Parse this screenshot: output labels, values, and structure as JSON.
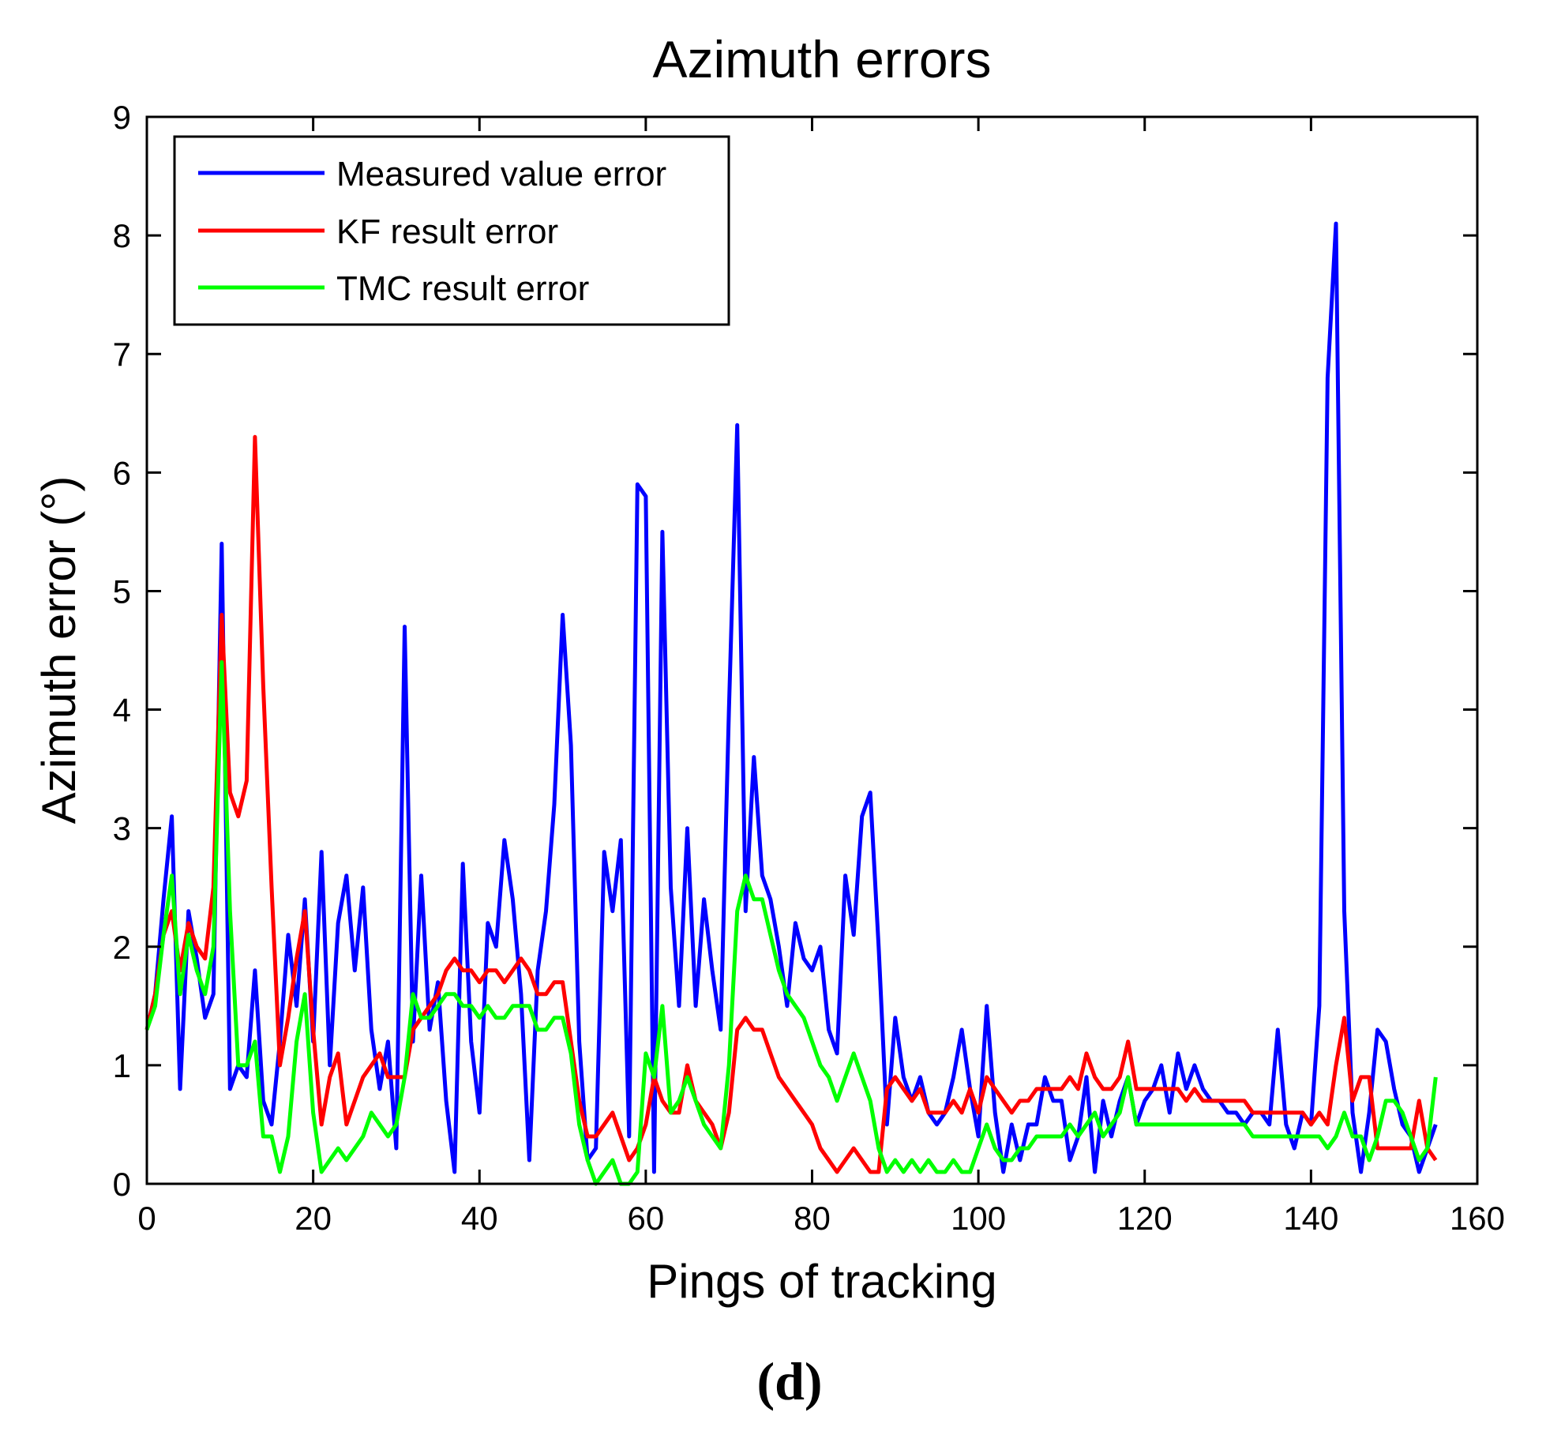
{
  "chart_data": {
    "type": "line",
    "title": "Azimuth errors",
    "xlabel": "Pings of tracking",
    "ylabel": "Azimuth error (°)",
    "panel_label": "(d)",
    "xlim": [
      0,
      160
    ],
    "ylim": [
      0,
      9
    ],
    "xticks": [
      0,
      20,
      40,
      60,
      80,
      100,
      120,
      140,
      160
    ],
    "yticks": [
      0,
      1,
      2,
      3,
      4,
      5,
      6,
      7,
      8,
      9
    ],
    "xtick_labels": [
      "0",
      "20",
      "40",
      "60",
      "80",
      "100",
      "120",
      "140",
      "160"
    ],
    "ytick_labels": [
      "0",
      "1",
      "2",
      "3",
      "4",
      "5",
      "6",
      "7",
      "8",
      "9"
    ],
    "grid": false,
    "legend_position": "top-left",
    "series": [
      {
        "name": "Measured value error",
        "color": "#0000ff",
        "x": [
          0,
          1,
          2,
          3,
          4,
          5,
          6,
          7,
          8,
          9,
          10,
          11,
          12,
          13,
          14,
          15,
          16,
          17,
          18,
          19,
          20,
          21,
          22,
          23,
          24,
          25,
          26,
          27,
          28,
          29,
          30,
          31,
          32,
          33,
          34,
          35,
          36,
          37,
          38,
          39,
          40,
          41,
          42,
          43,
          44,
          45,
          46,
          47,
          48,
          49,
          50,
          51,
          52,
          53,
          54,
          55,
          56,
          57,
          58,
          59,
          60,
          61,
          62,
          63,
          64,
          65,
          66,
          67,
          68,
          69,
          70,
          71,
          72,
          73,
          74,
          75,
          76,
          77,
          78,
          79,
          80,
          81,
          82,
          83,
          84,
          85,
          86,
          87,
          88,
          89,
          90,
          91,
          92,
          93,
          94,
          95,
          96,
          97,
          98,
          99,
          100,
          101,
          102,
          103,
          104,
          105,
          106,
          107,
          108,
          109,
          110,
          111,
          112,
          113,
          114,
          115,
          116,
          117,
          118,
          119,
          120,
          121,
          122,
          123,
          124,
          125,
          126,
          127,
          128,
          129,
          130,
          131,
          132,
          133,
          134,
          135,
          136,
          137,
          138,
          139,
          140,
          141,
          142,
          143,
          144,
          145,
          146,
          147,
          148,
          149,
          150,
          151,
          152,
          153,
          154,
          155
        ],
        "y": [
          1.3,
          1.6,
          2.4,
          3.1,
          0.8,
          2.3,
          1.9,
          1.4,
          1.6,
          5.4,
          0.8,
          1.0,
          0.9,
          1.8,
          0.7,
          0.5,
          1.2,
          2.1,
          1.5,
          2.4,
          1.2,
          2.8,
          1.0,
          2.2,
          2.6,
          1.8,
          2.5,
          1.3,
          0.8,
          1.2,
          0.3,
          4.7,
          1.2,
          2.6,
          1.3,
          1.7,
          0.7,
          0.1,
          2.7,
          1.2,
          0.6,
          2.2,
          2.0,
          2.9,
          2.4,
          1.6,
          0.2,
          1.8,
          2.3,
          3.2,
          4.8,
          3.7,
          1.2,
          0.2,
          0.3,
          2.8,
          2.3,
          2.9,
          0.4,
          5.9,
          5.8,
          0.1,
          5.5,
          2.5,
          1.5,
          3.0,
          1.5,
          2.4,
          1.8,
          1.3,
          4.0,
          6.4,
          2.3,
          3.6,
          2.6,
          2.4,
          2.0,
          1.5,
          2.2,
          1.9,
          1.8,
          2.0,
          1.3,
          1.1,
          2.6,
          2.1,
          3.1,
          3.3,
          2.0,
          0.5,
          1.4,
          0.9,
          0.7,
          0.9,
          0.6,
          0.5,
          0.6,
          0.9,
          1.3,
          0.8,
          0.4,
          1.5,
          0.6,
          0.1,
          0.5,
          0.2,
          0.5,
          0.5,
          0.9,
          0.7,
          0.7,
          0.2,
          0.4,
          0.9,
          0.1,
          0.7,
          0.4,
          0.7,
          0.9,
          0.5,
          0.7,
          0.8,
          1.0,
          0.6,
          1.1,
          0.8,
          1.0,
          0.8,
          0.7,
          0.7,
          0.6,
          0.6,
          0.5,
          0.6,
          0.6,
          0.5,
          1.3,
          0.5,
          0.3,
          0.6,
          0.5,
          1.5,
          6.8,
          8.1,
          2.3,
          0.6,
          0.1,
          0.6,
          1.3,
          1.2,
          0.8,
          0.5,
          0.4,
          0.1,
          0.3,
          0.5
        ]
      },
      {
        "name": "KF result error",
        "color": "#ff0000",
        "x": [
          0,
          1,
          2,
          3,
          4,
          5,
          6,
          7,
          8,
          9,
          10,
          11,
          12,
          13,
          14,
          15,
          16,
          17,
          18,
          19,
          20,
          21,
          22,
          23,
          24,
          25,
          26,
          27,
          28,
          29,
          30,
          31,
          32,
          33,
          34,
          35,
          36,
          37,
          38,
          39,
          40,
          41,
          42,
          43,
          44,
          45,
          46,
          47,
          48,
          49,
          50,
          51,
          52,
          53,
          54,
          55,
          56,
          57,
          58,
          59,
          60,
          61,
          62,
          63,
          64,
          65,
          66,
          67,
          68,
          69,
          70,
          71,
          72,
          73,
          74,
          75,
          76,
          77,
          78,
          79,
          80,
          81,
          82,
          83,
          84,
          85,
          86,
          87,
          88,
          89,
          90,
          91,
          92,
          93,
          94,
          95,
          96,
          97,
          98,
          99,
          100,
          101,
          102,
          103,
          104,
          105,
          106,
          107,
          108,
          109,
          110,
          111,
          112,
          113,
          114,
          115,
          116,
          117,
          118,
          119,
          120,
          121,
          122,
          123,
          124,
          125,
          126,
          127,
          128,
          129,
          130,
          131,
          132,
          133,
          134,
          135,
          136,
          137,
          138,
          139,
          140,
          141,
          142,
          143,
          144,
          145,
          146,
          147,
          148,
          149,
          150,
          151,
          152,
          153,
          154,
          155
        ],
        "y": [
          1.3,
          1.6,
          2.1,
          2.3,
          1.8,
          2.2,
          2.0,
          1.9,
          2.5,
          4.8,
          3.3,
          3.1,
          3.4,
          6.3,
          4.2,
          2.5,
          1.0,
          1.4,
          1.9,
          2.3,
          1.3,
          0.5,
          0.9,
          1.1,
          0.5,
          0.7,
          0.9,
          1.0,
          1.1,
          0.9,
          0.9,
          0.9,
          1.3,
          1.4,
          1.5,
          1.6,
          1.8,
          1.9,
          1.8,
          1.8,
          1.7,
          1.8,
          1.8,
          1.7,
          1.8,
          1.9,
          1.8,
          1.6,
          1.6,
          1.7,
          1.7,
          1.2,
          0.7,
          0.4,
          0.4,
          0.5,
          0.6,
          0.4,
          0.2,
          0.3,
          0.5,
          0.9,
          0.7,
          0.6,
          0.6,
          1.0,
          0.7,
          0.6,
          0.5,
          0.3,
          0.6,
          1.3,
          1.4,
          1.3,
          1.3,
          1.1,
          0.9,
          0.8,
          0.7,
          0.6,
          0.5,
          0.3,
          0.2,
          0.1,
          0.2,
          0.3,
          0.2,
          0.1,
          0.1,
          0.8,
          0.9,
          0.8,
          0.7,
          0.8,
          0.6,
          0.6,
          0.6,
          0.7,
          0.6,
          0.8,
          0.6,
          0.9,
          0.8,
          0.7,
          0.6,
          0.7,
          0.7,
          0.8,
          0.8,
          0.8,
          0.8,
          0.9,
          0.8,
          1.1,
          0.9,
          0.8,
          0.8,
          0.9,
          1.2,
          0.8,
          0.8,
          0.8,
          0.8,
          0.8,
          0.8,
          0.7,
          0.8,
          0.7,
          0.7,
          0.7,
          0.7,
          0.7,
          0.7,
          0.6,
          0.6,
          0.6,
          0.6,
          0.6,
          0.6,
          0.6,
          0.5,
          0.6,
          0.5,
          1.0,
          1.4,
          0.7,
          0.9,
          0.9,
          0.3,
          0.3,
          0.3,
          0.3,
          0.3,
          0.7,
          0.3,
          0.2
        ]
      },
      {
        "name": "TMC result error",
        "color": "#00ff00",
        "x": [
          0,
          1,
          2,
          3,
          4,
          5,
          6,
          7,
          8,
          9,
          10,
          11,
          12,
          13,
          14,
          15,
          16,
          17,
          18,
          19,
          20,
          21,
          22,
          23,
          24,
          25,
          26,
          27,
          28,
          29,
          30,
          31,
          32,
          33,
          34,
          35,
          36,
          37,
          38,
          39,
          40,
          41,
          42,
          43,
          44,
          45,
          46,
          47,
          48,
          49,
          50,
          51,
          52,
          53,
          54,
          55,
          56,
          57,
          58,
          59,
          60,
          61,
          62,
          63,
          64,
          65,
          66,
          67,
          68,
          69,
          70,
          71,
          72,
          73,
          74,
          75,
          76,
          77,
          78,
          79,
          80,
          81,
          82,
          83,
          84,
          85,
          86,
          87,
          88,
          89,
          90,
          91,
          92,
          93,
          94,
          95,
          96,
          97,
          98,
          99,
          100,
          101,
          102,
          103,
          104,
          105,
          106,
          107,
          108,
          109,
          110,
          111,
          112,
          113,
          114,
          115,
          116,
          117,
          118,
          119,
          120,
          121,
          122,
          123,
          124,
          125,
          126,
          127,
          128,
          129,
          130,
          131,
          132,
          133,
          134,
          135,
          136,
          137,
          138,
          139,
          140,
          141,
          142,
          143,
          144,
          145,
          146,
          147,
          148,
          149,
          150,
          151,
          152,
          153,
          154,
          155
        ],
        "y": [
          1.3,
          1.5,
          2.1,
          2.6,
          1.6,
          2.1,
          1.8,
          1.6,
          2.0,
          4.4,
          2.3,
          1.0,
          1.0,
          1.2,
          0.4,
          0.4,
          0.1,
          0.4,
          1.2,
          1.6,
          0.6,
          0.1,
          0.2,
          0.3,
          0.2,
          0.3,
          0.4,
          0.6,
          0.5,
          0.4,
          0.5,
          0.9,
          1.6,
          1.4,
          1.4,
          1.5,
          1.6,
          1.6,
          1.5,
          1.5,
          1.4,
          1.5,
          1.4,
          1.4,
          1.5,
          1.5,
          1.5,
          1.3,
          1.3,
          1.4,
          1.4,
          1.1,
          0.5,
          0.2,
          0.0,
          0.1,
          0.2,
          0.0,
          0.0,
          0.1,
          1.1,
          0.9,
          1.5,
          0.6,
          0.7,
          0.9,
          0.7,
          0.5,
          0.4,
          0.3,
          1.0,
          2.3,
          2.6,
          2.4,
          2.4,
          2.1,
          1.8,
          1.6,
          1.5,
          1.4,
          1.2,
          1.0,
          0.9,
          0.7,
          0.9,
          1.1,
          0.9,
          0.7,
          0.3,
          0.1,
          0.2,
          0.1,
          0.2,
          0.1,
          0.2,
          0.1,
          0.1,
          0.2,
          0.1,
          0.1,
          0.3,
          0.5,
          0.3,
          0.2,
          0.2,
          0.3,
          0.3,
          0.4,
          0.4,
          0.4,
          0.4,
          0.5,
          0.4,
          0.5,
          0.6,
          0.4,
          0.5,
          0.6,
          0.9,
          0.5,
          0.5,
          0.5,
          0.5,
          0.5,
          0.5,
          0.5,
          0.5,
          0.5,
          0.5,
          0.5,
          0.5,
          0.5,
          0.5,
          0.4,
          0.4,
          0.4,
          0.4,
          0.4,
          0.4,
          0.4,
          0.4,
          0.4,
          0.3,
          0.4,
          0.6,
          0.4,
          0.4,
          0.2,
          0.4,
          0.7,
          0.7,
          0.6,
          0.4,
          0.2,
          0.3,
          0.9
        ]
      }
    ]
  }
}
